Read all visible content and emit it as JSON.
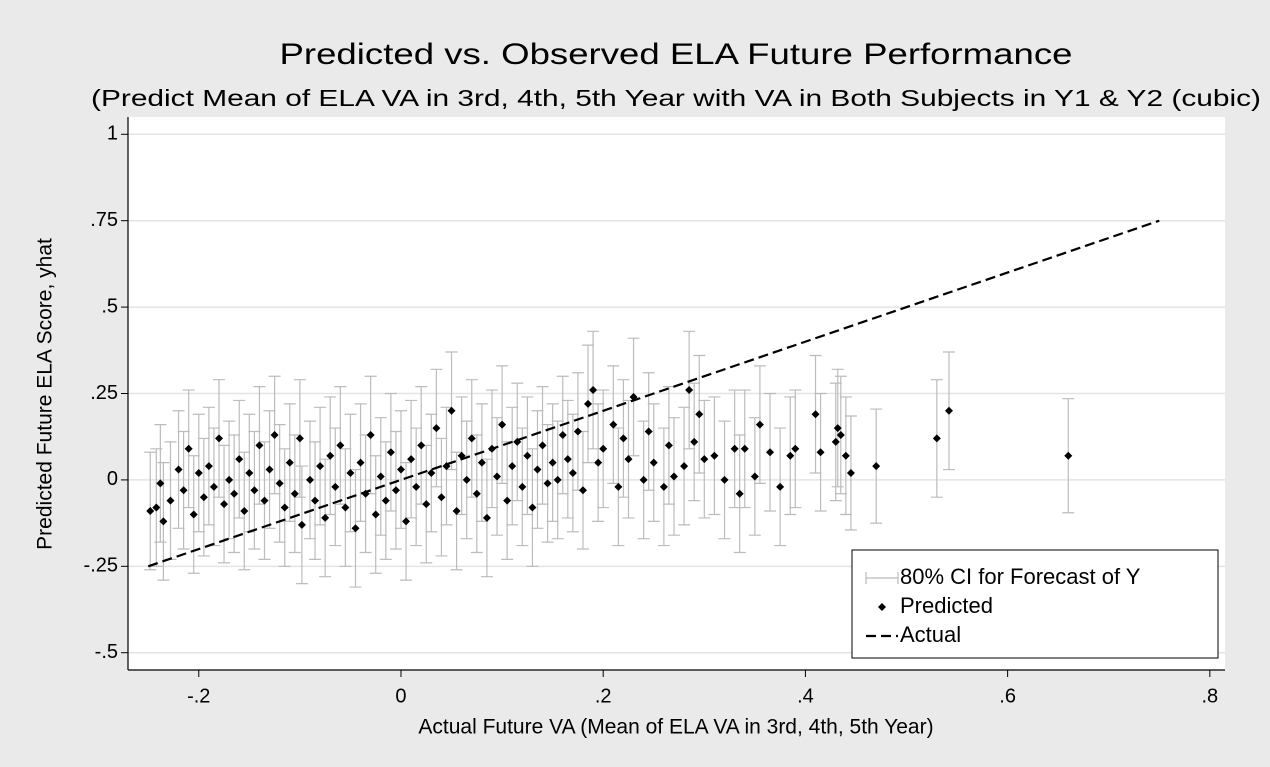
{
  "chart_data": {
    "type": "scatter",
    "title": "Predicted vs. Observed ELA Future Performance",
    "subtitle": "(Predict Mean of ELA VA in 3rd, 4th, 5th Year with VA in Both Subjects in Y1 & Y2 (cubic)",
    "x_label": "Actual Future VA (Mean of ELA VA in 3rd, 4th, 5th Year)",
    "y_label": "Predicted Future ELA Score, yhat",
    "xlim": [
      -0.27,
      0.815
    ],
    "ylim": [
      -0.55,
      1.05
    ],
    "xticks": [
      {
        "value": -0.2,
        "label": "-.2"
      },
      0,
      {
        "value": 0.2,
        "label": ".2"
      },
      {
        "value": 0.4,
        "label": ".4"
      },
      {
        "value": 0.6,
        "label": ".6"
      },
      {
        "value": 0.8,
        "label": ".8"
      }
    ],
    "yticks": [
      {
        "value": -0.5,
        "label": "-.5"
      },
      {
        "value": -0.25,
        "label": "-.25"
      },
      0,
      {
        "value": 0.25,
        "label": ".25"
      },
      {
        "value": 0.5,
        "label": ".5"
      },
      {
        "value": 0.75,
        "label": ".75"
      },
      1
    ],
    "grid": true,
    "legend": "bottom-right",
    "series": [
      {
        "name": "Predicted",
        "color": "#000000",
        "marker": "diamond",
        "error_name": "80% CI for Forecast of Y",
        "error_color": "#bcbcbc",
        "x": [
          -0.248,
          -0.242,
          -0.238,
          -0.235,
          -0.228,
          -0.22,
          -0.215,
          -0.21,
          -0.205,
          -0.2,
          -0.195,
          -0.19,
          -0.185,
          -0.18,
          -0.175,
          -0.17,
          -0.165,
          -0.16,
          -0.155,
          -0.15,
          -0.145,
          -0.14,
          -0.135,
          -0.13,
          -0.125,
          -0.12,
          -0.115,
          -0.11,
          -0.105,
          -0.1,
          -0.098,
          -0.09,
          -0.085,
          -0.08,
          -0.075,
          -0.07,
          -0.065,
          -0.06,
          -0.055,
          -0.05,
          -0.045,
          -0.04,
          -0.035,
          -0.03,
          -0.025,
          -0.02,
          -0.015,
          -0.01,
          -0.005,
          0.0,
          0.005,
          0.01,
          0.015,
          0.02,
          0.025,
          0.03,
          0.035,
          0.04,
          0.045,
          0.05,
          0.055,
          0.06,
          0.065,
          0.07,
          0.075,
          0.08,
          0.085,
          0.09,
          0.095,
          0.1,
          0.105,
          0.11,
          0.115,
          0.12,
          0.125,
          0.13,
          0.135,
          0.14,
          0.145,
          0.15,
          0.155,
          0.16,
          0.165,
          0.17,
          0.175,
          0.18,
          0.185,
          0.19,
          0.195,
          0.2,
          0.21,
          0.215,
          0.22,
          0.225,
          0.23,
          0.24,
          0.245,
          0.25,
          0.26,
          0.265,
          0.27,
          0.28,
          0.285,
          0.29,
          0.295,
          0.3,
          0.31,
          0.32,
          0.33,
          0.335,
          0.34,
          0.35,
          0.355,
          0.365,
          0.375,
          0.385,
          0.39,
          0.41,
          0.415,
          0.43,
          0.432,
          0.435,
          0.44,
          0.445,
          0.47,
          0.53,
          0.542,
          0.66
        ],
        "values": [
          -0.09,
          -0.08,
          -0.01,
          -0.12,
          -0.06,
          0.03,
          -0.03,
          0.09,
          -0.1,
          0.02,
          -0.05,
          0.04,
          -0.02,
          0.12,
          -0.07,
          0.0,
          -0.04,
          0.06,
          -0.09,
          0.02,
          -0.03,
          0.1,
          -0.06,
          0.03,
          0.13,
          -0.01,
          -0.08,
          0.05,
          -0.04,
          0.12,
          -0.13,
          0.0,
          -0.06,
          0.04,
          -0.11,
          0.07,
          -0.02,
          0.1,
          -0.08,
          0.02,
          -0.14,
          0.05,
          -0.04,
          0.13,
          -0.1,
          0.01,
          -0.06,
          0.08,
          -0.03,
          0.03,
          -0.12,
          0.06,
          -0.02,
          0.1,
          -0.07,
          0.02,
          0.15,
          -0.05,
          0.04,
          0.2,
          -0.09,
          0.07,
          0.0,
          0.12,
          -0.04,
          0.05,
          -0.11,
          0.09,
          0.01,
          0.16,
          -0.06,
          0.04,
          0.11,
          -0.02,
          0.07,
          -0.08,
          0.03,
          0.1,
          -0.01,
          0.05,
          0.0,
          0.13,
          0.06,
          0.02,
          0.14,
          -0.03,
          0.22,
          0.26,
          0.05,
          0.09,
          0.16,
          -0.02,
          0.12,
          0.06,
          0.24,
          0.0,
          0.14,
          0.05,
          -0.02,
          0.1,
          0.01,
          0.04,
          0.26,
          0.11,
          0.19,
          0.06,
          0.07,
          0.0,
          0.09,
          -0.04,
          0.09,
          0.01,
          0.16,
          0.08,
          -0.02,
          0.07,
          0.09,
          0.19,
          0.08,
          0.11,
          0.15,
          0.13,
          0.07,
          0.02,
          0.04,
          0.12,
          0.2,
          0.07
        ],
        "errors": [
          0.17,
          0.17,
          0.17,
          0.17,
          0.17,
          0.17,
          0.17,
          0.17,
          0.17,
          0.17,
          0.17,
          0.17,
          0.17,
          0.17,
          0.17,
          0.17,
          0.17,
          0.17,
          0.17,
          0.17,
          0.17,
          0.17,
          0.17,
          0.17,
          0.17,
          0.17,
          0.17,
          0.17,
          0.17,
          0.17,
          0.17,
          0.17,
          0.17,
          0.17,
          0.17,
          0.17,
          0.17,
          0.17,
          0.17,
          0.17,
          0.17,
          0.17,
          0.17,
          0.17,
          0.17,
          0.17,
          0.17,
          0.17,
          0.17,
          0.17,
          0.17,
          0.17,
          0.17,
          0.17,
          0.17,
          0.17,
          0.17,
          0.17,
          0.17,
          0.17,
          0.17,
          0.17,
          0.17,
          0.17,
          0.17,
          0.17,
          0.17,
          0.17,
          0.17,
          0.17,
          0.17,
          0.17,
          0.17,
          0.17,
          0.17,
          0.17,
          0.17,
          0.17,
          0.17,
          0.17,
          0.17,
          0.17,
          0.17,
          0.17,
          0.17,
          0.17,
          0.17,
          0.17,
          0.17,
          0.17,
          0.17,
          0.17,
          0.17,
          0.17,
          0.17,
          0.17,
          0.17,
          0.17,
          0.17,
          0.17,
          0.17,
          0.17,
          0.17,
          0.17,
          0.17,
          0.17,
          0.17,
          0.17,
          0.17,
          0.17,
          0.17,
          0.17,
          0.17,
          0.17,
          0.17,
          0.17,
          0.17,
          0.17,
          0.17,
          0.17,
          0.17,
          0.17,
          0.17,
          0.165,
          0.165,
          0.17,
          0.17,
          0.165
        ]
      },
      {
        "name": "Actual",
        "color": "#000000",
        "line": "dashed",
        "x": [
          -0.25,
          0.75
        ],
        "values": [
          -0.25,
          0.75
        ]
      }
    ]
  }
}
